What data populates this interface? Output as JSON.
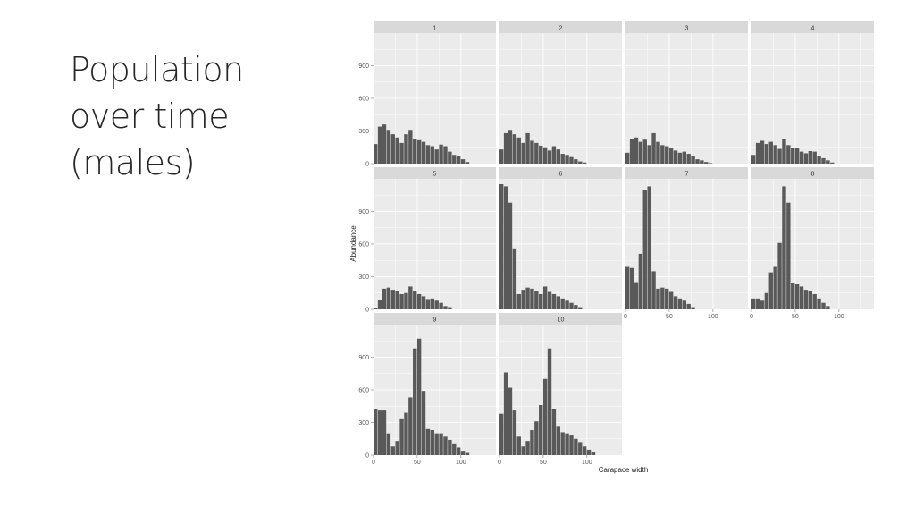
{
  "slide": {
    "title_lines": [
      "Population",
      "over time",
      "(males)"
    ]
  },
  "colors": {
    "bar": "#595959",
    "panel_bg": "#ebebeb",
    "strip_bg": "#d9d9d9",
    "grid": "#ffffff"
  },
  "chart_data": {
    "type": "bar",
    "subtype": "faceted-histogram",
    "xlabel": "Carapace width",
    "ylabel": "Abundance",
    "xlim": [
      0,
      140
    ],
    "ylim": [
      0,
      1150
    ],
    "x_ticks": [
      0,
      50,
      100
    ],
    "y_ticks": [
      0,
      300,
      600,
      900
    ],
    "bin_width": 5,
    "bin_starts": [
      0,
      5,
      10,
      15,
      20,
      25,
      30,
      35,
      40,
      45,
      50,
      55,
      60,
      65,
      70,
      75,
      80,
      85,
      90,
      95,
      100,
      105,
      110,
      115,
      120,
      125
    ],
    "panels": [
      {
        "label": "1",
        "values": [
          180,
          340,
          360,
          310,
          270,
          240,
          190,
          270,
          310,
          230,
          215,
          200,
          170,
          160,
          130,
          175,
          160,
          110,
          80,
          70,
          40,
          15,
          0,
          0,
          0,
          0
        ]
      },
      {
        "label": "2",
        "values": [
          130,
          280,
          310,
          270,
          240,
          190,
          280,
          210,
          190,
          165,
          150,
          120,
          160,
          130,
          90,
          80,
          60,
          40,
          20,
          10,
          0,
          0,
          0,
          0,
          0,
          0
        ]
      },
      {
        "label": "3",
        "values": [
          100,
          230,
          240,
          200,
          220,
          170,
          280,
          200,
          170,
          160,
          145,
          120,
          100,
          110,
          90,
          70,
          40,
          30,
          15,
          5,
          0,
          0,
          0,
          0,
          0,
          0
        ]
      },
      {
        "label": "4",
        "values": [
          80,
          190,
          210,
          180,
          200,
          170,
          135,
          230,
          170,
          140,
          140,
          110,
          95,
          115,
          110,
          70,
          50,
          30,
          10,
          0,
          0,
          0,
          0,
          0,
          0,
          0
        ]
      },
      {
        "label": "5",
        "values": [
          10,
          90,
          190,
          200,
          180,
          170,
          140,
          150,
          210,
          170,
          140,
          120,
          95,
          100,
          80,
          60,
          30,
          20,
          0,
          0,
          0,
          0,
          0,
          0,
          0,
          0
        ]
      },
      {
        "label": "6",
        "values": [
          1150,
          1130,
          980,
          560,
          140,
          180,
          200,
          190,
          170,
          140,
          210,
          160,
          140,
          120,
          100,
          80,
          60,
          40,
          20,
          0,
          0,
          0,
          0,
          0,
          0,
          0
        ]
      },
      {
        "label": "7",
        "values": [
          390,
          380,
          250,
          510,
          1100,
          1130,
          350,
          190,
          200,
          190,
          160,
          120,
          100,
          80,
          50,
          20,
          0,
          0,
          0,
          0,
          0,
          0,
          0,
          0,
          0,
          0
        ]
      },
      {
        "label": "8",
        "values": [
          100,
          100,
          80,
          150,
          340,
          390,
          610,
          1130,
          980,
          240,
          230,
          210,
          180,
          170,
          140,
          100,
          60,
          30,
          0,
          0,
          0,
          0,
          0,
          0,
          0,
          0
        ]
      },
      {
        "label": "9",
        "values": [
          420,
          410,
          410,
          200,
          80,
          130,
          330,
          390,
          530,
          980,
          1070,
          590,
          240,
          230,
          200,
          200,
          170,
          140,
          100,
          70,
          40,
          20,
          0,
          0,
          0,
          0
        ]
      },
      {
        "label": "10",
        "values": [
          380,
          760,
          620,
          410,
          170,
          80,
          130,
          230,
          310,
          460,
          700,
          980,
          420,
          260,
          210,
          200,
          180,
          150,
          120,
          80,
          50,
          25,
          0,
          0,
          0,
          0
        ]
      }
    ],
    "ncols": 4,
    "grid": true
  }
}
